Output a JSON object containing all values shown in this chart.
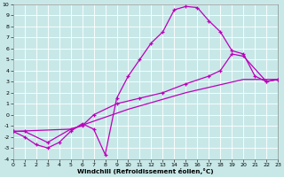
{
  "xlabel": "Windchill (Refroidissement éolien,°C)",
  "bg_color": "#c8e8e8",
  "grid_color": "#ffffff",
  "line_color": "#bb00bb",
  "xlim": [
    0,
    23
  ],
  "ylim": [
    -4,
    10
  ],
  "xticks": [
    0,
    1,
    2,
    3,
    4,
    5,
    6,
    7,
    8,
    9,
    10,
    11,
    12,
    13,
    14,
    15,
    16,
    17,
    18,
    19,
    20,
    21,
    22,
    23
  ],
  "yticks": [
    -4,
    -3,
    -2,
    -1,
    0,
    1,
    2,
    3,
    4,
    5,
    6,
    7,
    8,
    9,
    10
  ],
  "curve1_x": [
    0,
    1,
    2,
    3,
    4,
    5,
    6,
    7,
    8,
    9,
    10,
    11,
    12,
    13,
    14,
    15,
    16,
    17,
    18,
    19,
    20,
    21,
    22,
    23
  ],
  "curve1_y": [
    -1.5,
    -2.0,
    -2.7,
    -3.0,
    -2.5,
    -1.5,
    -0.8,
    -1.3,
    -3.6,
    1.5,
    3.5,
    5.0,
    6.5,
    7.5,
    9.5,
    9.8,
    9.7,
    8.5,
    7.5,
    5.8,
    5.5,
    3.5,
    3.0,
    3.2
  ],
  "curve2_x": [
    0,
    1,
    3,
    5,
    6,
    7,
    9,
    11,
    13,
    15,
    17,
    18,
    19,
    20,
    22,
    23
  ],
  "curve2_y": [
    -1.5,
    -1.5,
    -2.5,
    -1.3,
    -1.0,
    0.0,
    1.0,
    1.5,
    2.0,
    2.8,
    3.5,
    4.0,
    5.5,
    5.3,
    3.0,
    3.2
  ],
  "curve3_x": [
    0,
    5,
    10,
    15,
    20,
    23
  ],
  "curve3_y": [
    -1.5,
    -1.3,
    0.5,
    2.0,
    3.2,
    3.2
  ]
}
